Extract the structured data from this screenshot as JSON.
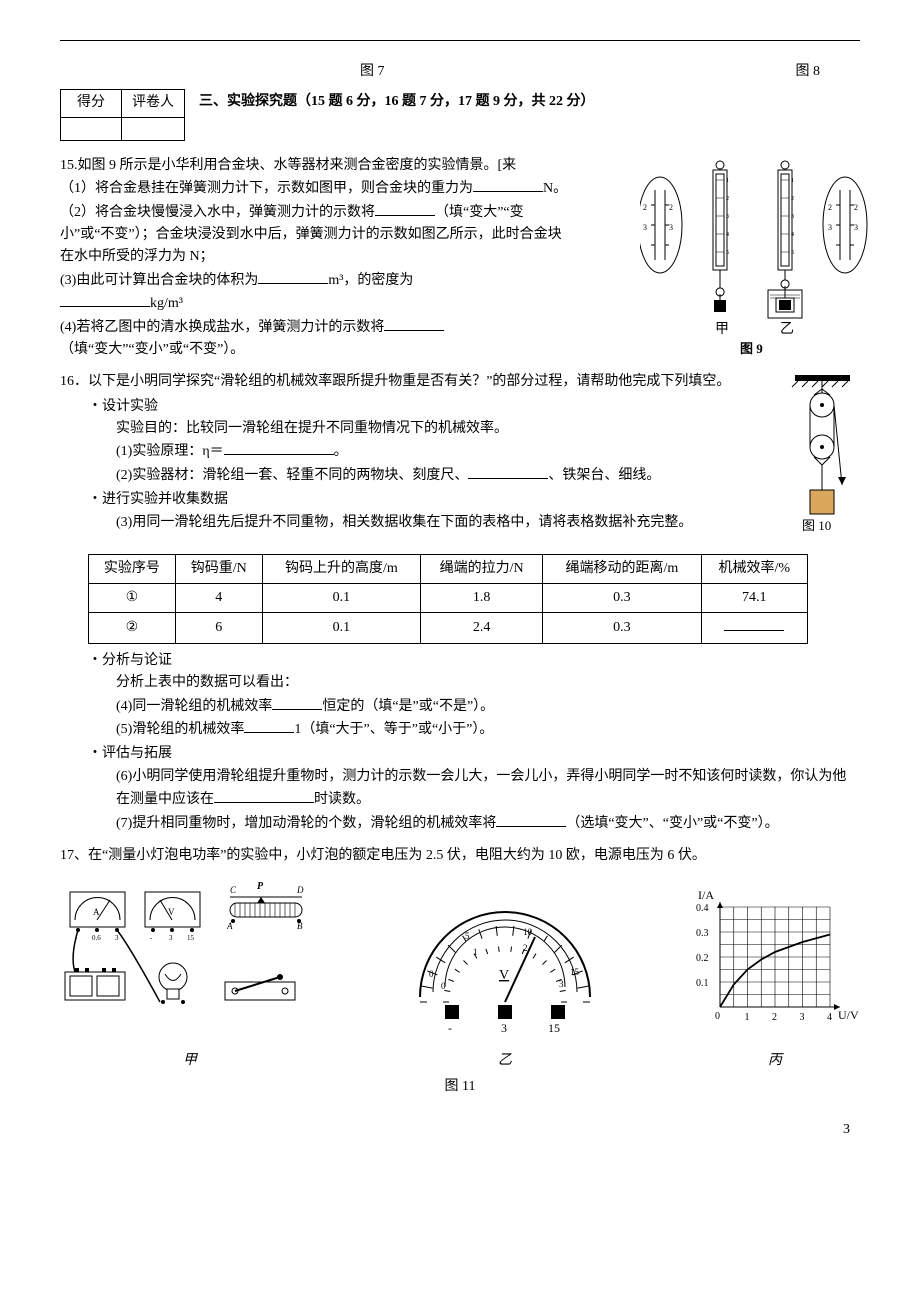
{
  "top": {
    "fig7": "图 7",
    "fig8": "图 8"
  },
  "scorebox": {
    "c1": "得分",
    "c2": "评卷人"
  },
  "section_title": "三、实验探究题（15 题 6 分，16 题 7 分，17 题 9 分，共 22 分）",
  "q15": {
    "lead": "15.如图 9 所示是小华利用合金块、水等器材来测合金密度的实验情景。[来",
    "p1a": "（1）将合金悬挂在弹簧测力计下，示数如图甲，则合金块的重力为",
    "p1b": "N。",
    "p2a": "（2）将合金块慢慢浸入水中，弹簧测力计的示数将",
    "p2b": "（填“变大”“变小”或“不变”）；合金块浸没到水中后，弹簧测力计的示数如图乙所示，此时合金块在水中所受的浮力为",
    "p2c": "N；",
    "p3a": "(3)由此可计算出合金块的体积为",
    "p3b": "m³，的密度为",
    "p3c": "kg/m³",
    "p4a": "(4)若将乙图中的清水换成盐水，弹簧测力计的示数将",
    "p4b": "（填“变大”“变小”或“不变”）。",
    "fig_jia": "甲",
    "fig_yi": "乙",
    "fig_label": "图 9"
  },
  "q16": {
    "lead": "16．以下是小明同学探究“滑轮组的机械效率跟所提升物重是否有关？”的部分过程，请帮助他完成下列填空。",
    "design": "・设计实验",
    "aim": "实验目的：比较同一滑轮组在提升不同重物情况下的机械效率。",
    "p1a": "(1)实验原理：η＝",
    "p1b": "。",
    "p2a": "(2)实验器材：滑轮组一套、轻重不同的两物块、刻度尺、",
    "p2b": "、铁架台、细线。",
    "run": "・进行实验并收集数据",
    "p3": "(3)用同一滑轮组先后提升不同重物，相关数据收集在下面的表格中，请将表格数据补充完整。",
    "fig_label": "图 10",
    "table": {
      "headers": [
        "实验序号",
        "钩码重/N",
        "钩码上升的高度/m",
        "绳端的拉力/N",
        "绳端移动的距离/m",
        "机械效率/%"
      ],
      "rows": [
        [
          "①",
          "4",
          "0.1",
          "1.8",
          "0.3",
          "74.1"
        ],
        [
          "②",
          "6",
          "0.1",
          "2.4",
          "0.3",
          ""
        ]
      ]
    },
    "analyze": "・分析与论证",
    "analyze_lead": "分析上表中的数据可以看出：",
    "p4a": "(4)同一滑轮组的机械效率",
    "p4b": "恒定的（填“是”或“不是”）。",
    "p5a": "(5)滑轮组的机械效率",
    "p5b": "1（填“大于”、等于”或“小于”）。",
    "eval": "・评估与拓展",
    "p6a": "(6)小明同学使用滑轮组提升重物时，测力计的示数一会儿大，一会儿小，弄得小明同学一时不知该何时读数，你认为他在测量中应该在",
    "p6b": "时读数。",
    "p7a": "(7)提升相同重物时，增加动滑轮的个数，滑轮组的机械效率将",
    "p7b": "（选填“变大”、“变小”或“不变”）。"
  },
  "q17": {
    "lead": "17、在“测量小灯泡电功率”的实验中，小灯泡的额定电压为 2.5 伏，电阻大约为 10 欧，电源电压为 6 伏。",
    "cap_jia": "甲",
    "cap_yi": "乙",
    "cap_bing": "丙",
    "fig_label": "图 11",
    "chart": {
      "ylabel": "I/A",
      "xlabel": "U/V",
      "yticks": [
        "0.1",
        "0.2",
        "0.3",
        "0.4"
      ],
      "xticks": [
        "1",
        "2",
        "3",
        "4"
      ],
      "grid_color": "#000",
      "curve_color": "#000",
      "points": [
        [
          0,
          0
        ],
        [
          0.5,
          0.09
        ],
        [
          1,
          0.15
        ],
        [
          1.5,
          0.19
        ],
        [
          2,
          0.22
        ],
        [
          2.5,
          0.24
        ],
        [
          3,
          0.26
        ],
        [
          3.5,
          0.275
        ],
        [
          4,
          0.29
        ]
      ]
    }
  },
  "voltmeter": {
    "unit": "V",
    "ranges": [
      "3",
      "15"
    ],
    "scale_top": [
      "0",
      "5",
      "10",
      "15"
    ],
    "scale_bot": [
      "0",
      "1",
      "2",
      "3"
    ]
  },
  "page_num": "3"
}
